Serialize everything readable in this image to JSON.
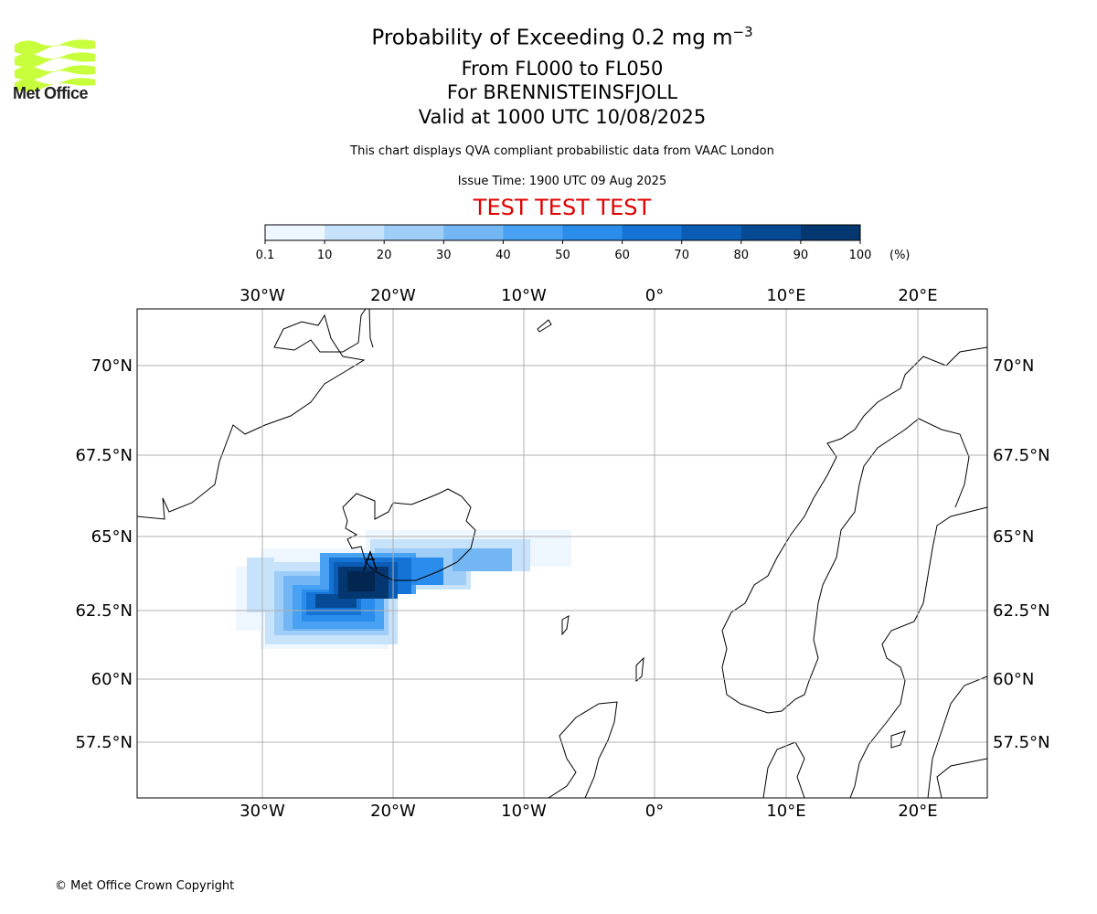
{
  "header": {
    "title_main": "Probability of Exceeding 0.2 mg m",
    "title_sup": "−3",
    "subtitle_levels": "From FL000 to FL050",
    "subtitle_volcano": "For BRENNISTEINSFJOLL",
    "subtitle_valid": "Valid at 1000 UTC 10/08/2025",
    "note": "This chart displays QVA compliant probabilistic data from VAAC London",
    "issue_time": "Issue Time: 1900 UTC 09 Aug 2025",
    "test_banner": "TEST TEST TEST"
  },
  "logo": {
    "text": "Met Office",
    "color": "#c8ff3c"
  },
  "colorbar": {
    "ticks": [
      "0.1",
      "10",
      "20",
      "30",
      "40",
      "50",
      "60",
      "70",
      "80",
      "90",
      "100"
    ],
    "unit": "(%)",
    "colors": [
      "#eef6ff",
      "#c7e2fb",
      "#9ecdf7",
      "#72b6f4",
      "#48a1f2",
      "#2a8ceb",
      "#1573d6",
      "#0b5cb5",
      "#074a94",
      "#04376f",
      "#022650"
    ]
  },
  "map": {
    "lon_labels": [
      "30°W",
      "20°W",
      "10°W",
      "0°",
      "10°E",
      "20°E"
    ],
    "lat_labels": [
      "70°N",
      "67.5°N",
      "65°N",
      "62.5°N",
      "60°N",
      "57.5°N"
    ]
  },
  "footer": {
    "copyright": "© Met Office Crown Copyright"
  }
}
